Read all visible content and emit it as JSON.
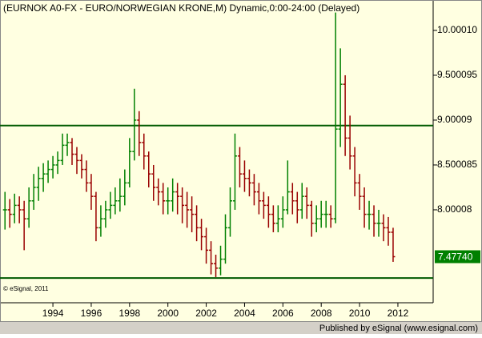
{
  "chart_data": {
    "type": "ohlc",
    "title": "(EURNOK A0-FX - EURO/NORWEGIAN KRONE,M) Dynamic,0:00-24:00 (Delayed)",
    "copyright": "© eSignal, 2011",
    "footer": "Published by eSignal (www.esignal.com)",
    "x": [
      1991.5,
      1991.75,
      1992,
      1992.25,
      1992.5,
      1992.75,
      1993,
      1993.25,
      1993.5,
      1993.75,
      1994,
      1994.25,
      1994.5,
      1994.75,
      1995,
      1995.25,
      1995.5,
      1995.75,
      1996,
      1996.25,
      1996.5,
      1996.75,
      1997,
      1997.25,
      1997.5,
      1997.75,
      1998,
      1998.25,
      1998.5,
      1998.75,
      1999,
      1999.25,
      1999.5,
      1999.75,
      2000,
      2000.25,
      2000.5,
      2000.75,
      2001,
      2001.25,
      2001.5,
      2001.75,
      2002,
      2002.25,
      2002.5,
      2002.75,
      2003,
      2003.25,
      2003.5,
      2003.75,
      2004,
      2004.25,
      2004.5,
      2004.75,
      2005,
      2005.25,
      2005.5,
      2005.75,
      2006,
      2006.25,
      2006.5,
      2006.75,
      2007,
      2007.25,
      2007.5,
      2007.75,
      2008,
      2008.25,
      2008.5,
      2008.75,
      2009,
      2009.25,
      2009.5,
      2009.75,
      2010,
      2010.25,
      2010.5,
      2010.75,
      2011,
      2011.25,
      2011.5,
      2011.75
    ],
    "open": [
      8.0,
      8.0,
      7.95,
      8.05,
      8.0,
      7.9,
      8.1,
      8.25,
      8.35,
      8.4,
      8.45,
      8.5,
      8.55,
      8.72,
      8.75,
      8.62,
      8.55,
      8.45,
      8.3,
      8.15,
      7.8,
      7.9,
      8.0,
      8.05,
      8.1,
      8.15,
      8.3,
      8.65,
      9.0,
      8.75,
      8.6,
      8.4,
      8.25,
      8.2,
      8.1,
      8.1,
      8.2,
      8.15,
      8.05,
      8.0,
      7.95,
      7.8,
      7.7,
      7.55,
      7.4,
      7.35,
      7.45,
      7.8,
      8.1,
      8.6,
      8.4,
      8.35,
      8.3,
      8.2,
      8.1,
      8.05,
      7.95,
      7.85,
      7.9,
      8.0,
      8.2,
      8.1,
      8.0,
      8.15,
      8.05,
      7.85,
      7.9,
      7.95,
      7.95,
      7.9,
      8.9,
      9.4,
      8.8,
      8.6,
      8.3,
      8.15,
      7.95,
      7.95,
      7.85,
      7.85,
      7.8,
      7.75
    ],
    "high": [
      8.2,
      8.12,
      8.18,
      8.15,
      8.1,
      8.25,
      8.4,
      8.48,
      8.52,
      8.55,
      8.6,
      8.65,
      8.85,
      8.85,
      8.8,
      8.7,
      8.62,
      8.55,
      8.4,
      8.2,
      8.05,
      8.1,
      8.2,
      8.25,
      8.35,
      8.45,
      8.8,
      9.35,
      9.1,
      8.85,
      8.65,
      8.5,
      8.35,
      8.3,
      8.25,
      8.35,
      8.3,
      8.25,
      8.2,
      8.15,
      8.05,
      7.9,
      7.8,
      7.65,
      7.5,
      7.6,
      7.95,
      8.25,
      8.85,
      8.7,
      8.55,
      8.45,
      8.4,
      8.3,
      8.2,
      8.15,
      8.05,
      8.05,
      8.15,
      8.55,
      8.3,
      8.2,
      8.3,
      8.25,
      8.1,
      8.05,
      8.1,
      8.1,
      8.05,
      10.2,
      9.8,
      9.5,
      9.05,
      8.7,
      8.4,
      8.25,
      8.1,
      8.05,
      8.0,
      7.95,
      7.92,
      7.8
    ],
    "low": [
      7.78,
      7.8,
      7.85,
      7.85,
      7.55,
      7.8,
      8.0,
      8.1,
      8.2,
      8.3,
      8.35,
      8.4,
      8.5,
      8.6,
      8.5,
      8.4,
      8.35,
      8.2,
      8.0,
      7.65,
      7.7,
      7.8,
      7.9,
      7.95,
      7.98,
      8.05,
      8.25,
      8.55,
      8.6,
      8.45,
      8.25,
      8.1,
      8.05,
      7.95,
      7.95,
      7.98,
      7.95,
      7.85,
      7.8,
      7.75,
      7.65,
      7.55,
      7.4,
      7.28,
      7.25,
      7.27,
      7.4,
      7.7,
      8.0,
      8.25,
      8.2,
      8.15,
      8.05,
      7.95,
      7.9,
      7.8,
      7.75,
      7.75,
      7.8,
      7.95,
      7.95,
      7.85,
      7.9,
      7.9,
      7.7,
      7.75,
      7.8,
      7.8,
      7.8,
      7.85,
      8.7,
      8.6,
      8.45,
      8.15,
      8.0,
      7.8,
      7.78,
      7.7,
      7.7,
      7.65,
      7.6,
      7.42
    ],
    "close": [
      8.0,
      7.95,
      8.05,
      8.0,
      7.9,
      8.1,
      8.25,
      8.35,
      8.4,
      8.45,
      8.5,
      8.55,
      8.72,
      8.75,
      8.62,
      8.55,
      8.45,
      8.3,
      8.15,
      7.8,
      7.9,
      8.0,
      8.05,
      8.1,
      8.15,
      8.3,
      8.65,
      9.0,
      8.75,
      8.6,
      8.4,
      8.25,
      8.2,
      8.1,
      8.1,
      8.2,
      8.15,
      8.05,
      8.0,
      7.95,
      7.8,
      7.7,
      7.55,
      7.4,
      7.35,
      7.45,
      7.8,
      8.1,
      8.6,
      8.4,
      8.35,
      8.3,
      8.2,
      8.1,
      8.05,
      7.95,
      7.85,
      7.9,
      8.0,
      8.2,
      8.1,
      8.0,
      8.15,
      8.05,
      7.85,
      7.9,
      7.95,
      7.95,
      7.9,
      8.9,
      9.4,
      8.8,
      8.6,
      8.3,
      8.15,
      7.95,
      7.95,
      7.85,
      7.85,
      7.8,
      7.75,
      7.4774
    ],
    "up_color": "#008000",
    "down_color": "#990000",
    "hlines": [
      8.94,
      7.24
    ],
    "hline_color": "#005a00",
    "last_price": {
      "value": 7.4774,
      "label": "7.47740"
    },
    "last_price_color": "#008000",
    "xlim": [
      1991.24,
      2013.84
    ],
    "xticks": [
      1994,
      1996,
      1998,
      2000,
      2002,
      2004,
      2006,
      2008,
      2010,
      2012
    ],
    "ylim": [
      6.964,
      10.339
    ],
    "yticks": [
      {
        "value": 8.00008,
        "label": "8.00008"
      },
      {
        "value": 8.500085,
        "label": "8.500085"
      },
      {
        "value": 9.00009,
        "label": "9.00009"
      },
      {
        "value": 9.500095,
        "label": "9.500095"
      },
      {
        "value": 10.0001,
        "label": "10.00010"
      }
    ],
    "background": "#ffffe1"
  }
}
